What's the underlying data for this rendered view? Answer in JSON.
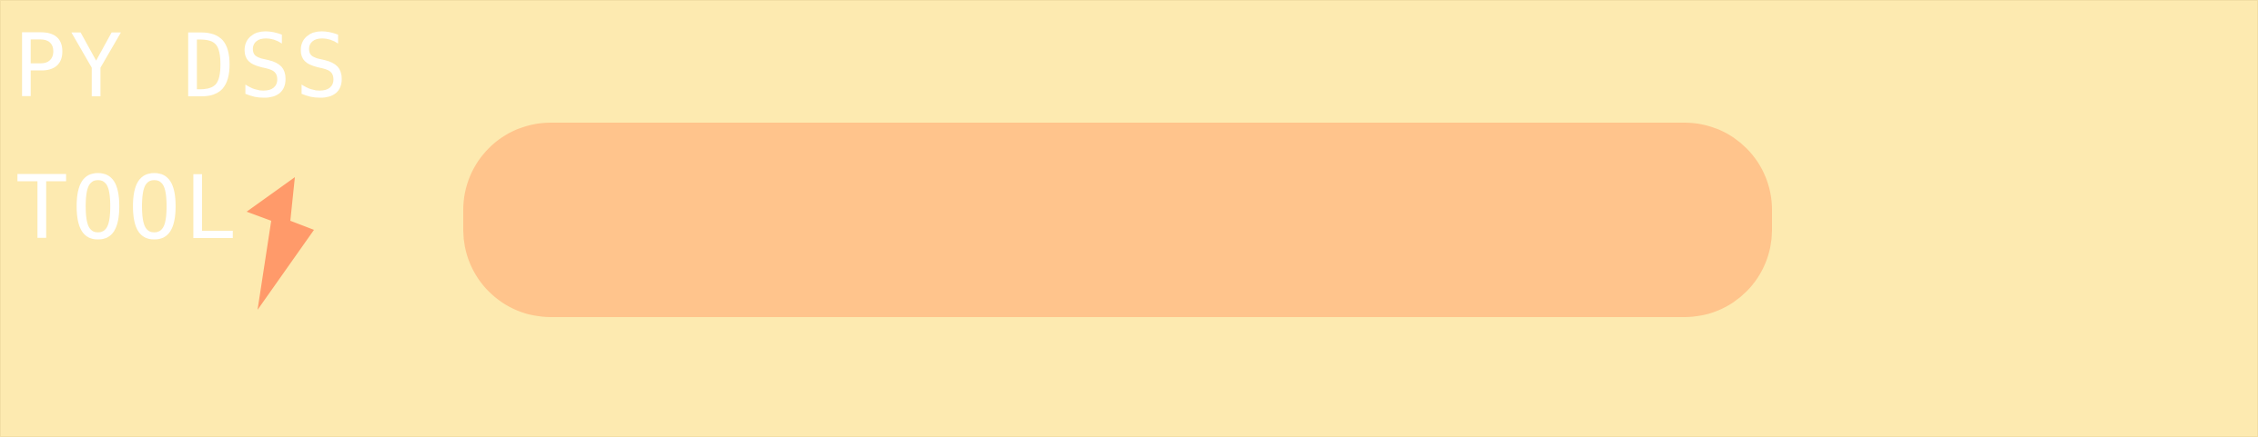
{
  "logo": {
    "line1": "PY DSS",
    "line2": "TOOL",
    "icon": "lightning-bolt-icon",
    "text_color": "#ffffff",
    "bolt_color": "#ff9a6a"
  },
  "banner_bar": {
    "color": "#ffc48c"
  },
  "background_color": "#fdeab0"
}
